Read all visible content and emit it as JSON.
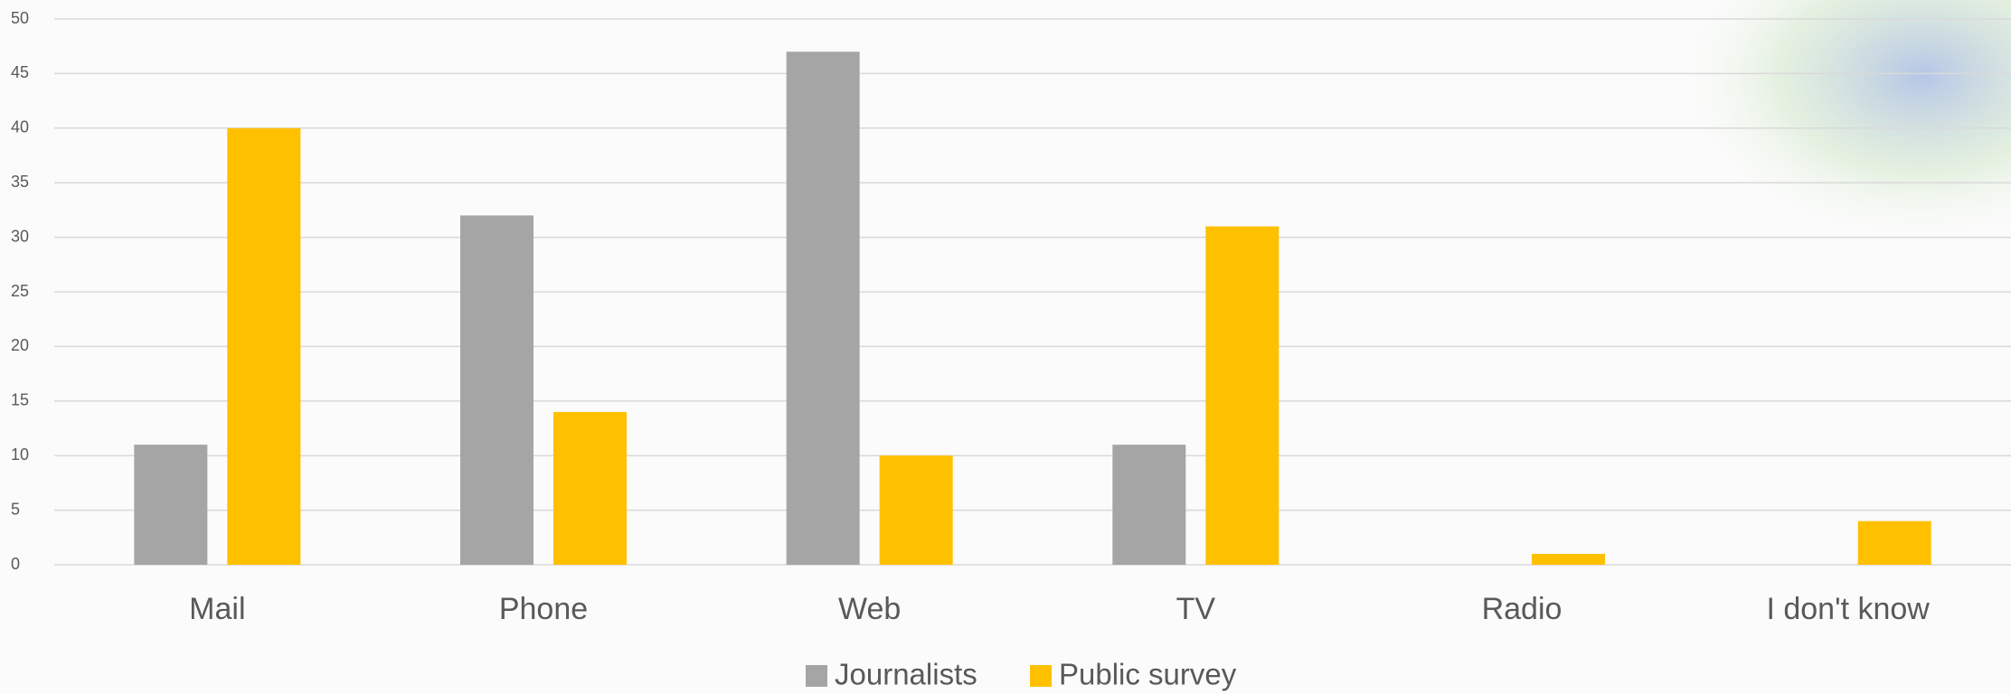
{
  "chart_data": {
    "type": "bar",
    "categories": [
      "Mail",
      "Phone",
      "Web",
      "TV",
      "Radio",
      "I don't know"
    ],
    "series": [
      {
        "name": "Journalists",
        "color": "#a5a5a5",
        "values": [
          11,
          32,
          47,
          11,
          0,
          0
        ]
      },
      {
        "name": "Public survey",
        "color": "#ffc000",
        "values": [
          40,
          14,
          10,
          31,
          1,
          4
        ]
      }
    ],
    "ylim": [
      0,
      50
    ],
    "yticks": [
      0,
      5,
      10,
      15,
      20,
      25,
      30,
      35,
      40,
      45,
      50
    ],
    "grid": true,
    "legend": "bottom"
  }
}
